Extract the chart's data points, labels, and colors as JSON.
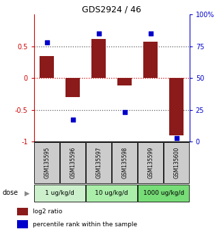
{
  "title": "GDS2924 / 46",
  "samples": [
    "GSM135595",
    "GSM135596",
    "GSM135597",
    "GSM135598",
    "GSM135599",
    "GSM135600"
  ],
  "log2_ratios": [
    0.35,
    -0.3,
    0.62,
    -0.12,
    0.57,
    -0.9
  ],
  "percentile_ranks": [
    78,
    17,
    85,
    23,
    85,
    3
  ],
  "dose_groups": [
    {
      "label": "1 ug/kg/d",
      "samples": [
        0,
        1
      ],
      "color": "#ccf0cc"
    },
    {
      "label": "10 ug/kg/d",
      "samples": [
        2,
        3
      ],
      "color": "#aaeeaa"
    },
    {
      "label": "1000 ug/kg/d",
      "samples": [
        4,
        5
      ],
      "color": "#77dd77"
    }
  ],
  "bar_color": "#8b1a1a",
  "dot_color": "#0000cc",
  "left_ylim": [
    -1,
    1
  ],
  "right_ylim": [
    0,
    100
  ],
  "left_yticks": [
    -1,
    -0.5,
    0,
    0.5
  ],
  "left_yticklabels": [
    "-1",
    "-0.5",
    "0",
    "0.5"
  ],
  "right_yticks": [
    0,
    25,
    50,
    75,
    100
  ],
  "right_yticklabels": [
    "0",
    "25",
    "50",
    "75",
    "100%"
  ],
  "hlines_black": [
    0.5,
    -0.5
  ],
  "hline_red": 0.0,
  "sample_box_color": "#cccccc",
  "dose_label": "dose",
  "legend_bar_label": "log2 ratio",
  "legend_dot_label": "percentile rank within the sample",
  "bar_width": 0.55,
  "background_color": "#ffffff"
}
